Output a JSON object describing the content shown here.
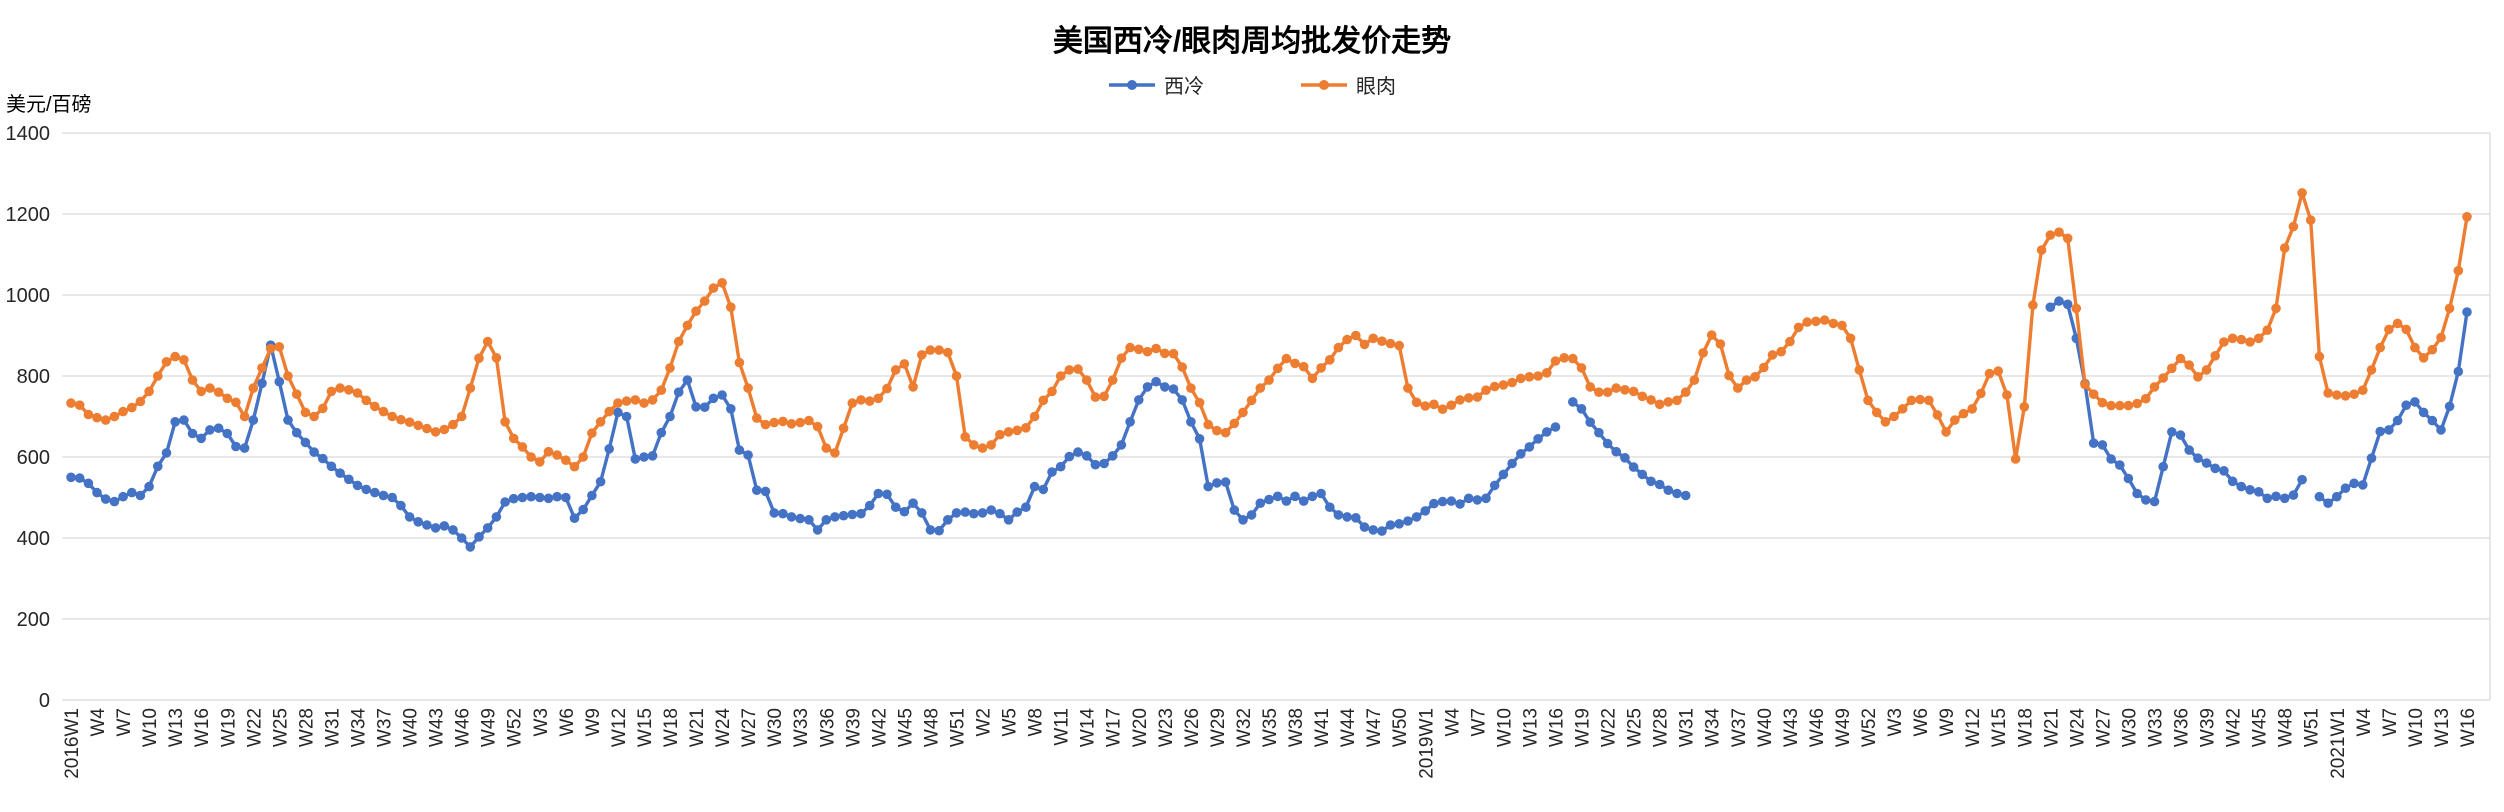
{
  "header": {
    "title": "美国西冷/眼肉周均批发价走势"
  },
  "y_axis": {
    "unit_label": "美元/百磅"
  },
  "legend": {
    "items": [
      {
        "label": "西冷",
        "color": "#4472C4"
      },
      {
        "label": "眼肉",
        "color": "#ED7D31"
      }
    ]
  },
  "chart_data": {
    "type": "line",
    "title": "美国西冷/眼肉周均批发价走势",
    "xlabel": "",
    "ylabel": "美元/百磅",
    "ylim": [
      0,
      1400
    ],
    "yticks": [
      0,
      200,
      400,
      600,
      800,
      1000,
      1200,
      1400
    ],
    "grid": "horizontal",
    "legend_position": "top-center",
    "marker": "circle",
    "x_unit": "week",
    "x_range": "2016W1 - 2021W16",
    "weeks_per_year": {
      "2016": 52,
      "2017": 52,
      "2018": 52,
      "2019": 52,
      "2020": 53,
      "2021": 16
    },
    "x_tick_every": 3,
    "x_tick_labels": [
      "2016W1",
      "W4",
      "W7",
      "W10",
      "W13",
      "W16",
      "W19",
      "W22",
      "W25",
      "W28",
      "W31",
      "W34",
      "W37",
      "W40",
      "W43",
      "W46",
      "W49",
      "W52",
      "W3",
      "W6",
      "W9",
      "W12",
      "W15",
      "W18",
      "W21",
      "W24",
      "W27",
      "W30",
      "W33",
      "W36",
      "W39",
      "W42",
      "W45",
      "W48",
      "W51",
      "W2",
      "W5",
      "W8",
      "W11",
      "W14",
      "W17",
      "W20",
      "W23",
      "W26",
      "W29",
      "W32",
      "W35",
      "W38",
      "W41",
      "W44",
      "W47",
      "W50",
      "2019W1",
      "W4",
      "W7",
      "W10",
      "W13",
      "W16",
      "W19",
      "W22",
      "W25",
      "W28",
      "W31",
      "W34",
      "W37",
      "W40",
      "W43",
      "W46",
      "W49",
      "W52",
      "W3",
      "W6",
      "W9",
      "W12",
      "W15",
      "W18",
      "W21",
      "W24",
      "W27",
      "W30",
      "W33",
      "W36",
      "W39",
      "W42",
      "W45",
      "W48",
      "W51",
      "2021W1",
      "W4",
      "W7",
      "W10",
      "W13",
      "W16"
    ],
    "series": [
      {
        "name": "西冷",
        "color": "#4472C4",
        "values": [
          550,
          548,
          535,
          512,
          496,
          490,
          502,
          512,
          505,
          527,
          577,
          610,
          687,
          691,
          658,
          646,
          667,
          671,
          658,
          626,
          622,
          691,
          782,
          876,
          786,
          691,
          660,
          636,
          612,
          596,
          577,
          560,
          545,
          530,
          520,
          512,
          505,
          500,
          480,
          452,
          440,
          432,
          425,
          430,
          420,
          400,
          378,
          403,
          425,
          452,
          489,
          497,
          500,
          502,
          500,
          498,
          502,
          500,
          449,
          470,
          505,
          539,
          620,
          710,
          700,
          595,
          600,
          603,
          660,
          700,
          760,
          790,
          724,
          723,
          745,
          753,
          719,
          617,
          605,
          518,
          515,
          462,
          460,
          452,
          448,
          445,
          420,
          445,
          452,
          455,
          458,
          460,
          480,
          510,
          508,
          476,
          465,
          486,
          462,
          420,
          418,
          445,
          462,
          464,
          460,
          462,
          469,
          460,
          445,
          464,
          476,
          527,
          520,
          563,
          576,
          601,
          612,
          603,
          581,
          584,
          603,
          630,
          687,
          741,
          773,
          786,
          773,
          768,
          741,
          687,
          645,
          527,
          536,
          538,
          469,
          445,
          457,
          486,
          495,
          503,
          491,
          503,
          491,
          503,
          510,
          476,
          457,
          452,
          450,
          427,
          420,
          417,
          432,
          435,
          442,
          452,
          467,
          485,
          490,
          491,
          484,
          498,
          494,
          498,
          530,
          557,
          584,
          608,
          625,
          645,
          662,
          674,
          null,
          736,
          719,
          686,
          660,
          633,
          613,
          598,
          575,
          557,
          540,
          532,
          518,
          510,
          505,
          null,
          null,
          null,
          null,
          null,
          null,
          null,
          null,
          null,
          null,
          null,
          null,
          null,
          null,
          null,
          null,
          null,
          null,
          null,
          null,
          null,
          null,
          null,
          null,
          null,
          null,
          null,
          null,
          null,
          null,
          null,
          null,
          null,
          null,
          null,
          null,
          null,
          null,
          null,
          null,
          null,
          970,
          985,
          977,
          893,
          781,
          634,
          630,
          595,
          580,
          547,
          510,
          494,
          490,
          576,
          662,
          654,
          617,
          597,
          585,
          572,
          566,
          540,
          527,
          519,
          514,
          498,
          503,
          498,
          506,
          544,
          null,
          502,
          486,
          502,
          523,
          535,
          531,
          597,
          663,
          667,
          690,
          728,
          736,
          710,
          690,
          667,
          725,
          811,
          958
        ]
      },
      {
        "name": "眼肉",
        "color": "#ED7D31",
        "values": [
          733,
          728,
          705,
          697,
          691,
          700,
          712,
          722,
          737,
          762,
          800,
          835,
          848,
          840,
          790,
          762,
          770,
          760,
          745,
          735,
          700,
          770,
          820,
          868,
          872,
          800,
          755,
          710,
          700,
          720,
          762,
          770,
          766,
          758,
          740,
          725,
          712,
          700,
          692,
          686,
          678,
          670,
          662,
          668,
          680,
          700,
          770,
          844,
          885,
          845,
          687,
          646,
          625,
          600,
          588,
          613,
          605,
          592,
          576,
          600,
          659,
          687,
          712,
          733,
          738,
          741,
          733,
          741,
          765,
          820,
          885,
          925,
          960,
          985,
          1017,
          1030,
          970,
          833,
          770,
          696,
          680,
          685,
          688,
          682,
          685,
          690,
          675,
          622,
          610,
          671,
          733,
          741,
          738,
          745,
          769,
          815,
          830,
          773,
          852,
          864,
          864,
          858,
          800,
          650,
          630,
          622,
          630,
          655,
          662,
          666,
          672,
          700,
          740,
          762,
          800,
          815,
          817,
          790,
          748,
          750,
          790,
          844,
          870,
          866,
          860,
          868,
          856,
          855,
          822,
          770,
          734,
          680,
          665,
          660,
          683,
          710,
          740,
          770,
          790,
          819,
          843,
          831,
          823,
          794,
          820,
          840,
          870,
          890,
          900,
          878,
          893,
          886,
          880,
          875,
          770,
          735,
          726,
          730,
          718,
          728,
          741,
          746,
          748,
          765,
          774,
          778,
          784,
          794,
          798,
          800,
          808,
          837,
          845,
          843,
          820,
          773,
          760,
          760,
          770,
          766,
          762,
          750,
          741,
          730,
          736,
          740,
          760,
          790,
          857,
          901,
          879,
          801,
          770,
          790,
          798,
          821,
          852,
          860,
          885,
          920,
          933,
          935,
          938,
          930,
          925,
          893,
          815,
          740,
          710,
          687,
          700,
          719,
          740,
          742,
          740,
          704,
          662,
          691,
          707,
          719,
          757,
          806,
          812,
          753,
          595,
          724,
          975,
          1111,
          1148,
          1155,
          1140,
          967,
          779,
          755,
          734,
          727,
          727,
          727,
          732,
          744,
          773,
          795,
          819,
          843,
          827,
          798,
          815,
          850,
          884,
          893,
          890,
          884,
          893,
          913,
          967,
          1116,
          1169,
          1252,
          1185,
          848,
          758,
          753,
          751,
          755,
          765,
          815,
          870,
          915,
          930,
          915,
          870,
          845,
          865,
          895,
          967,
          1060,
          1193
        ]
      }
    ]
  }
}
